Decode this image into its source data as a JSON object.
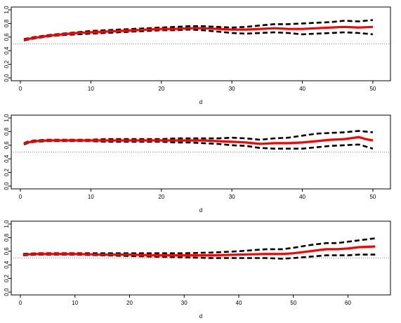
{
  "chart_data": [
    {
      "type": "line",
      "xlabel": "d",
      "ylabel": "",
      "xlim": [
        0,
        51.5
      ],
      "ylim": [
        0,
        1
      ],
      "xticks": [
        0,
        10,
        20,
        30,
        40,
        50
      ],
      "yticks": [
        0.0,
        0.2,
        0.4,
        0.6,
        0.8,
        1.0
      ],
      "ytick_labels": [
        "0.0",
        "0.2",
        "0.4",
        "0.6",
        "0.8",
        "1.0"
      ],
      "reference_line": 0.5,
      "x": [
        0.5,
        2,
        4,
        6,
        8,
        10,
        12,
        14,
        16,
        18,
        20,
        22,
        24,
        26,
        28,
        30,
        32,
        34,
        36,
        38,
        40,
        42,
        44,
        46,
        48,
        50
      ],
      "series": [
        {
          "style": "solid",
          "color": "#ff0000",
          "values": [
            0.56,
            0.59,
            0.62,
            0.64,
            0.66,
            0.67,
            0.68,
            0.69,
            0.7,
            0.71,
            0.72,
            0.72,
            0.73,
            0.73,
            0.72,
            0.71,
            0.71,
            0.72,
            0.73,
            0.72,
            0.72,
            0.73,
            0.74,
            0.75,
            0.74,
            0.75
          ]
        },
        {
          "style": "dashed",
          "color": "#000000",
          "values": [
            0.57,
            0.6,
            0.63,
            0.65,
            0.67,
            0.69,
            0.7,
            0.71,
            0.72,
            0.73,
            0.74,
            0.75,
            0.76,
            0.76,
            0.75,
            0.74,
            0.75,
            0.77,
            0.79,
            0.79,
            0.8,
            0.81,
            0.82,
            0.84,
            0.83,
            0.85
          ]
        },
        {
          "style": "dashed",
          "color": "#000000",
          "values": [
            0.55,
            0.58,
            0.61,
            0.63,
            0.64,
            0.65,
            0.66,
            0.67,
            0.68,
            0.69,
            0.7,
            0.7,
            0.71,
            0.7,
            0.68,
            0.66,
            0.65,
            0.66,
            0.67,
            0.66,
            0.64,
            0.65,
            0.66,
            0.67,
            0.66,
            0.64
          ]
        }
      ]
    },
    {
      "type": "line",
      "xlabel": "d",
      "ylabel": "",
      "xlim": [
        0,
        51.5
      ],
      "ylim": [
        0,
        1
      ],
      "xticks": [
        0,
        10,
        20,
        30,
        40,
        50
      ],
      "yticks": [
        0.0,
        0.2,
        0.4,
        0.6,
        0.8,
        1.0
      ],
      "ytick_labels": [
        "0.0",
        "0.2",
        "0.4",
        "0.6",
        "0.8",
        "1.0"
      ],
      "reference_line": 0.5,
      "x": [
        0.5,
        1,
        2,
        4,
        6,
        8,
        10,
        12,
        14,
        16,
        18,
        20,
        22,
        24,
        26,
        28,
        30,
        32,
        34,
        36,
        38,
        40,
        42,
        44,
        46,
        48,
        49,
        50
      ],
      "series": [
        {
          "style": "solid",
          "color": "#ff0000",
          "values": [
            0.62,
            0.64,
            0.66,
            0.67,
            0.67,
            0.67,
            0.67,
            0.67,
            0.67,
            0.67,
            0.67,
            0.67,
            0.67,
            0.67,
            0.67,
            0.66,
            0.65,
            0.64,
            0.62,
            0.63,
            0.63,
            0.64,
            0.66,
            0.68,
            0.69,
            0.72,
            0.69,
            0.67
          ]
        },
        {
          "style": "dashed",
          "color": "#000000",
          "values": [
            0.63,
            0.65,
            0.67,
            0.68,
            0.68,
            0.68,
            0.68,
            0.69,
            0.69,
            0.69,
            0.69,
            0.69,
            0.7,
            0.7,
            0.7,
            0.7,
            0.71,
            0.7,
            0.68,
            0.7,
            0.71,
            0.74,
            0.77,
            0.78,
            0.79,
            0.81,
            0.8,
            0.79
          ]
        },
        {
          "style": "dashed",
          "color": "#000000",
          "values": [
            0.61,
            0.63,
            0.65,
            0.66,
            0.66,
            0.66,
            0.66,
            0.65,
            0.65,
            0.65,
            0.65,
            0.65,
            0.64,
            0.64,
            0.63,
            0.62,
            0.6,
            0.59,
            0.56,
            0.55,
            0.55,
            0.55,
            0.57,
            0.59,
            0.6,
            0.61,
            0.58,
            0.55
          ]
        }
      ]
    },
    {
      "type": "line",
      "xlabel": "d",
      "ylabel": "",
      "xlim": [
        0,
        66.5
      ],
      "ylim": [
        0,
        1
      ],
      "xticks": [
        0,
        10,
        20,
        30,
        40,
        50,
        60
      ],
      "yticks": [
        0.0,
        0.2,
        0.4,
        0.6,
        0.8,
        1.0
      ],
      "ytick_labels": [
        "0.0",
        "0.2",
        "0.4",
        "0.6",
        "0.8",
        "1.0"
      ],
      "reference_line": 0.5,
      "x": [
        0.5,
        3,
        6,
        10,
        15,
        20,
        25,
        30,
        35,
        40,
        45,
        48,
        50,
        53,
        56,
        58,
        60,
        62,
        65
      ],
      "series": [
        {
          "style": "solid",
          "color": "#ff0000",
          "values": [
            0.55,
            0.56,
            0.56,
            0.56,
            0.55,
            0.55,
            0.54,
            0.54,
            0.54,
            0.55,
            0.56,
            0.56,
            0.57,
            0.6,
            0.63,
            0.63,
            0.64,
            0.66,
            0.67
          ]
        },
        {
          "style": "dashed",
          "color": "#000000",
          "values": [
            0.56,
            0.57,
            0.57,
            0.57,
            0.57,
            0.57,
            0.57,
            0.57,
            0.58,
            0.6,
            0.63,
            0.63,
            0.65,
            0.69,
            0.72,
            0.72,
            0.74,
            0.76,
            0.79
          ]
        },
        {
          "style": "dashed",
          "color": "#000000",
          "values": [
            0.54,
            0.55,
            0.55,
            0.55,
            0.54,
            0.53,
            0.52,
            0.51,
            0.5,
            0.5,
            0.5,
            0.49,
            0.5,
            0.52,
            0.54,
            0.54,
            0.54,
            0.55,
            0.55
          ]
        }
      ]
    }
  ]
}
